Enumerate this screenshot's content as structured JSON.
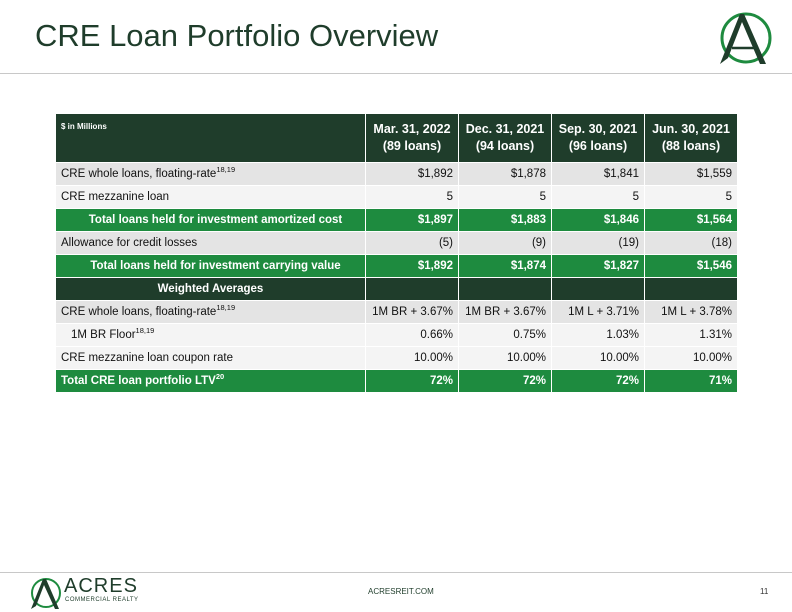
{
  "header": {
    "title": "CRE Loan Portfolio Overview"
  },
  "table": {
    "unit": "$ in Millions",
    "columns": [
      {
        "date": "Mar. 31, 2022",
        "count": "(89 loans)"
      },
      {
        "date": "Dec. 31, 2021",
        "count": "(94 loans)"
      },
      {
        "date": "Sep. 30, 2021",
        "count": "(96 loans)"
      },
      {
        "date": "Jun. 30, 2021",
        "count": "(88 loans)"
      }
    ],
    "rows": [
      {
        "label": "CRE whole loans, floating-rate",
        "note": "18,19",
        "cells": [
          "$1,892",
          "$1,878",
          "$1,841",
          "$1,559"
        ]
      },
      {
        "label": "CRE mezzanine loan",
        "cells": [
          "5",
          "5",
          "5",
          "5"
        ]
      },
      {
        "label": "Total loans held for investment amortized cost",
        "cells": [
          "$1,897",
          "$1,883",
          "$1,846",
          "$1,564"
        ]
      },
      {
        "label": "Allowance for credit losses",
        "cells": [
          "(5)",
          "(9)",
          "(19)",
          "(18)"
        ]
      },
      {
        "label": "Total loans held for investment carrying value",
        "cells": [
          "$1,892",
          "$1,874",
          "$1,827",
          "$1,546"
        ]
      },
      {
        "label": "Weighted Averages"
      },
      {
        "label": "CRE whole loans, floating-rate",
        "note": "18,19",
        "cells": [
          "1M BR + 3.67%",
          "1M BR + 3.67%",
          "1M L + 3.71%",
          "1M L + 3.78%"
        ]
      },
      {
        "label": "1M BR Floor",
        "note": "18,19",
        "cells": [
          "0.66%",
          "0.75%",
          "1.03%",
          "1.31%"
        ]
      },
      {
        "label": "CRE mezzanine loan coupon rate",
        "cells": [
          "10.00%",
          "10.00%",
          "10.00%",
          "10.00%"
        ]
      },
      {
        "label": "Total CRE loan portfolio LTV",
        "note": "20",
        "cells": [
          "72%",
          "72%",
          "72%",
          "71%"
        ]
      }
    ]
  },
  "footer": {
    "website": "ACRESREIT.COM",
    "page": "11",
    "logo_name": "ACRES",
    "logo_sub": "COMMERCIAL REALTY"
  }
}
